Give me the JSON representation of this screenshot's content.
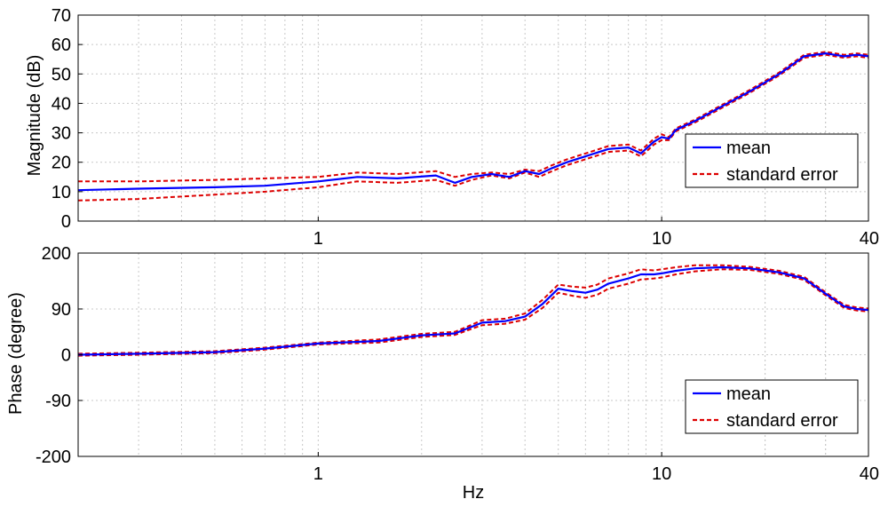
{
  "figure": {
    "xlabel": "Hz",
    "line_colors": {
      "mean": "#0000ff",
      "standard_error": "#dd0000"
    },
    "background": "#ffffff",
    "grid_color": "#c8c8c8"
  },
  "chart_data": [
    {
      "type": "line",
      "title": "",
      "xlabel": "",
      "ylabel": "Magnitude (dB)",
      "xscale": "log",
      "xlim": [
        0.2,
        40
      ],
      "ylim": [
        0,
        70
      ],
      "xticks": [
        1,
        10,
        40
      ],
      "xtick_labels": [
        "1",
        "10",
        "40"
      ],
      "yticks": [
        0,
        10,
        20,
        30,
        40,
        50,
        60,
        70
      ],
      "ytick_labels": [
        "0",
        "10",
        "20",
        "30",
        "40",
        "50",
        "60",
        "70"
      ],
      "grid": true,
      "legend": {
        "position": "right",
        "entries": [
          "mean",
          "standard error"
        ]
      },
      "x": [
        0.2,
        0.3,
        0.5,
        0.7,
        1.0,
        1.3,
        1.7,
        2.2,
        2.5,
        2.8,
        3.2,
        3.6,
        4.0,
        4.4,
        4.8,
        5.3,
        6.0,
        7.0,
        8.0,
        8.7,
        9.5,
        10,
        10.5,
        11,
        12.5,
        15,
        18,
        22,
        26,
        30,
        34,
        37,
        40
      ],
      "series": [
        {
          "name": "mean",
          "values": [
            10.5,
            11,
            11.5,
            12,
            13.5,
            15,
            14.5,
            15.5,
            13,
            15,
            16,
            15,
            17,
            16,
            18,
            20,
            22,
            24.5,
            25,
            23,
            27,
            28.5,
            28,
            31,
            34,
            39,
            44,
            50,
            56,
            57,
            56,
            56.5,
            56
          ]
        },
        {
          "name": "standard error",
          "values": [
            13.5,
            13.5,
            14,
            14.5,
            15,
            16.5,
            16,
            17,
            15,
            16,
            16.5,
            16,
            17.5,
            17,
            19,
            21,
            23,
            25.5,
            26,
            24,
            28,
            29.5,
            28.5,
            31.5,
            34.5,
            39.5,
            44.5,
            50.5,
            56.5,
            57.5,
            56.5,
            57,
            56.5
          ]
        },
        {
          "name": "standard error",
          "values": [
            7,
            7.5,
            9,
            10,
            11.5,
            13.5,
            13,
            14,
            12,
            14,
            15.5,
            14.5,
            16.5,
            15,
            17,
            19,
            21,
            23.5,
            24,
            22,
            26,
            27.5,
            27.5,
            30.5,
            33.5,
            38.5,
            43.5,
            49.5,
            55.5,
            56.5,
            55.5,
            56,
            55.5
          ]
        }
      ]
    },
    {
      "type": "line",
      "title": "",
      "xlabel": "Hz",
      "ylabel": "Phase (degree)",
      "xscale": "log",
      "xlim": [
        0.2,
        40
      ],
      "ylim": [
        -200,
        200
      ],
      "xticks": [
        1,
        10,
        40
      ],
      "xtick_labels": [
        "1",
        "10",
        "40"
      ],
      "yticks": [
        -200,
        -90,
        0,
        90,
        200
      ],
      "ytick_labels": [
        "-200",
        "-90",
        "0",
        "90",
        "200"
      ],
      "grid": true,
      "legend": {
        "position": "bottom-right",
        "entries": [
          "mean",
          "standard error"
        ]
      },
      "x": [
        0.2,
        0.3,
        0.5,
        0.7,
        1.0,
        1.5,
        2.0,
        2.5,
        2.8,
        3.0,
        3.5,
        4.0,
        4.5,
        5.0,
        5.5,
        6.0,
        6.5,
        7.0,
        8.0,
        8.7,
        9.5,
        10,
        11,
        12.5,
        15,
        18,
        22,
        26,
        30,
        34,
        37,
        40
      ],
      "series": [
        {
          "name": "mean",
          "values": [
            0,
            2,
            5,
            12,
            22,
            27,
            38,
            42,
            55,
            63,
            66,
            75,
            100,
            130,
            125,
            122,
            128,
            140,
            150,
            158,
            158,
            160,
            165,
            170,
            172,
            170,
            162,
            150,
            120,
            95,
            90,
            88
          ]
        },
        {
          "name": "standard error",
          "values": [
            2,
            4,
            7,
            14,
            24,
            30,
            41,
            45,
            59,
            68,
            71,
            81,
            108,
            138,
            134,
            132,
            138,
            150,
            160,
            168,
            166,
            168,
            172,
            176,
            176,
            173,
            165,
            153,
            123,
            98,
            93,
            91
          ]
        },
        {
          "name": "standard error",
          "values": [
            -2,
            0,
            3,
            10,
            20,
            24,
            35,
            39,
            51,
            58,
            61,
            69,
            92,
            122,
            116,
            112,
            118,
            130,
            140,
            148,
            150,
            152,
            158,
            164,
            168,
            167,
            159,
            147,
            117,
            92,
            87,
            85
          ]
        }
      ]
    }
  ]
}
